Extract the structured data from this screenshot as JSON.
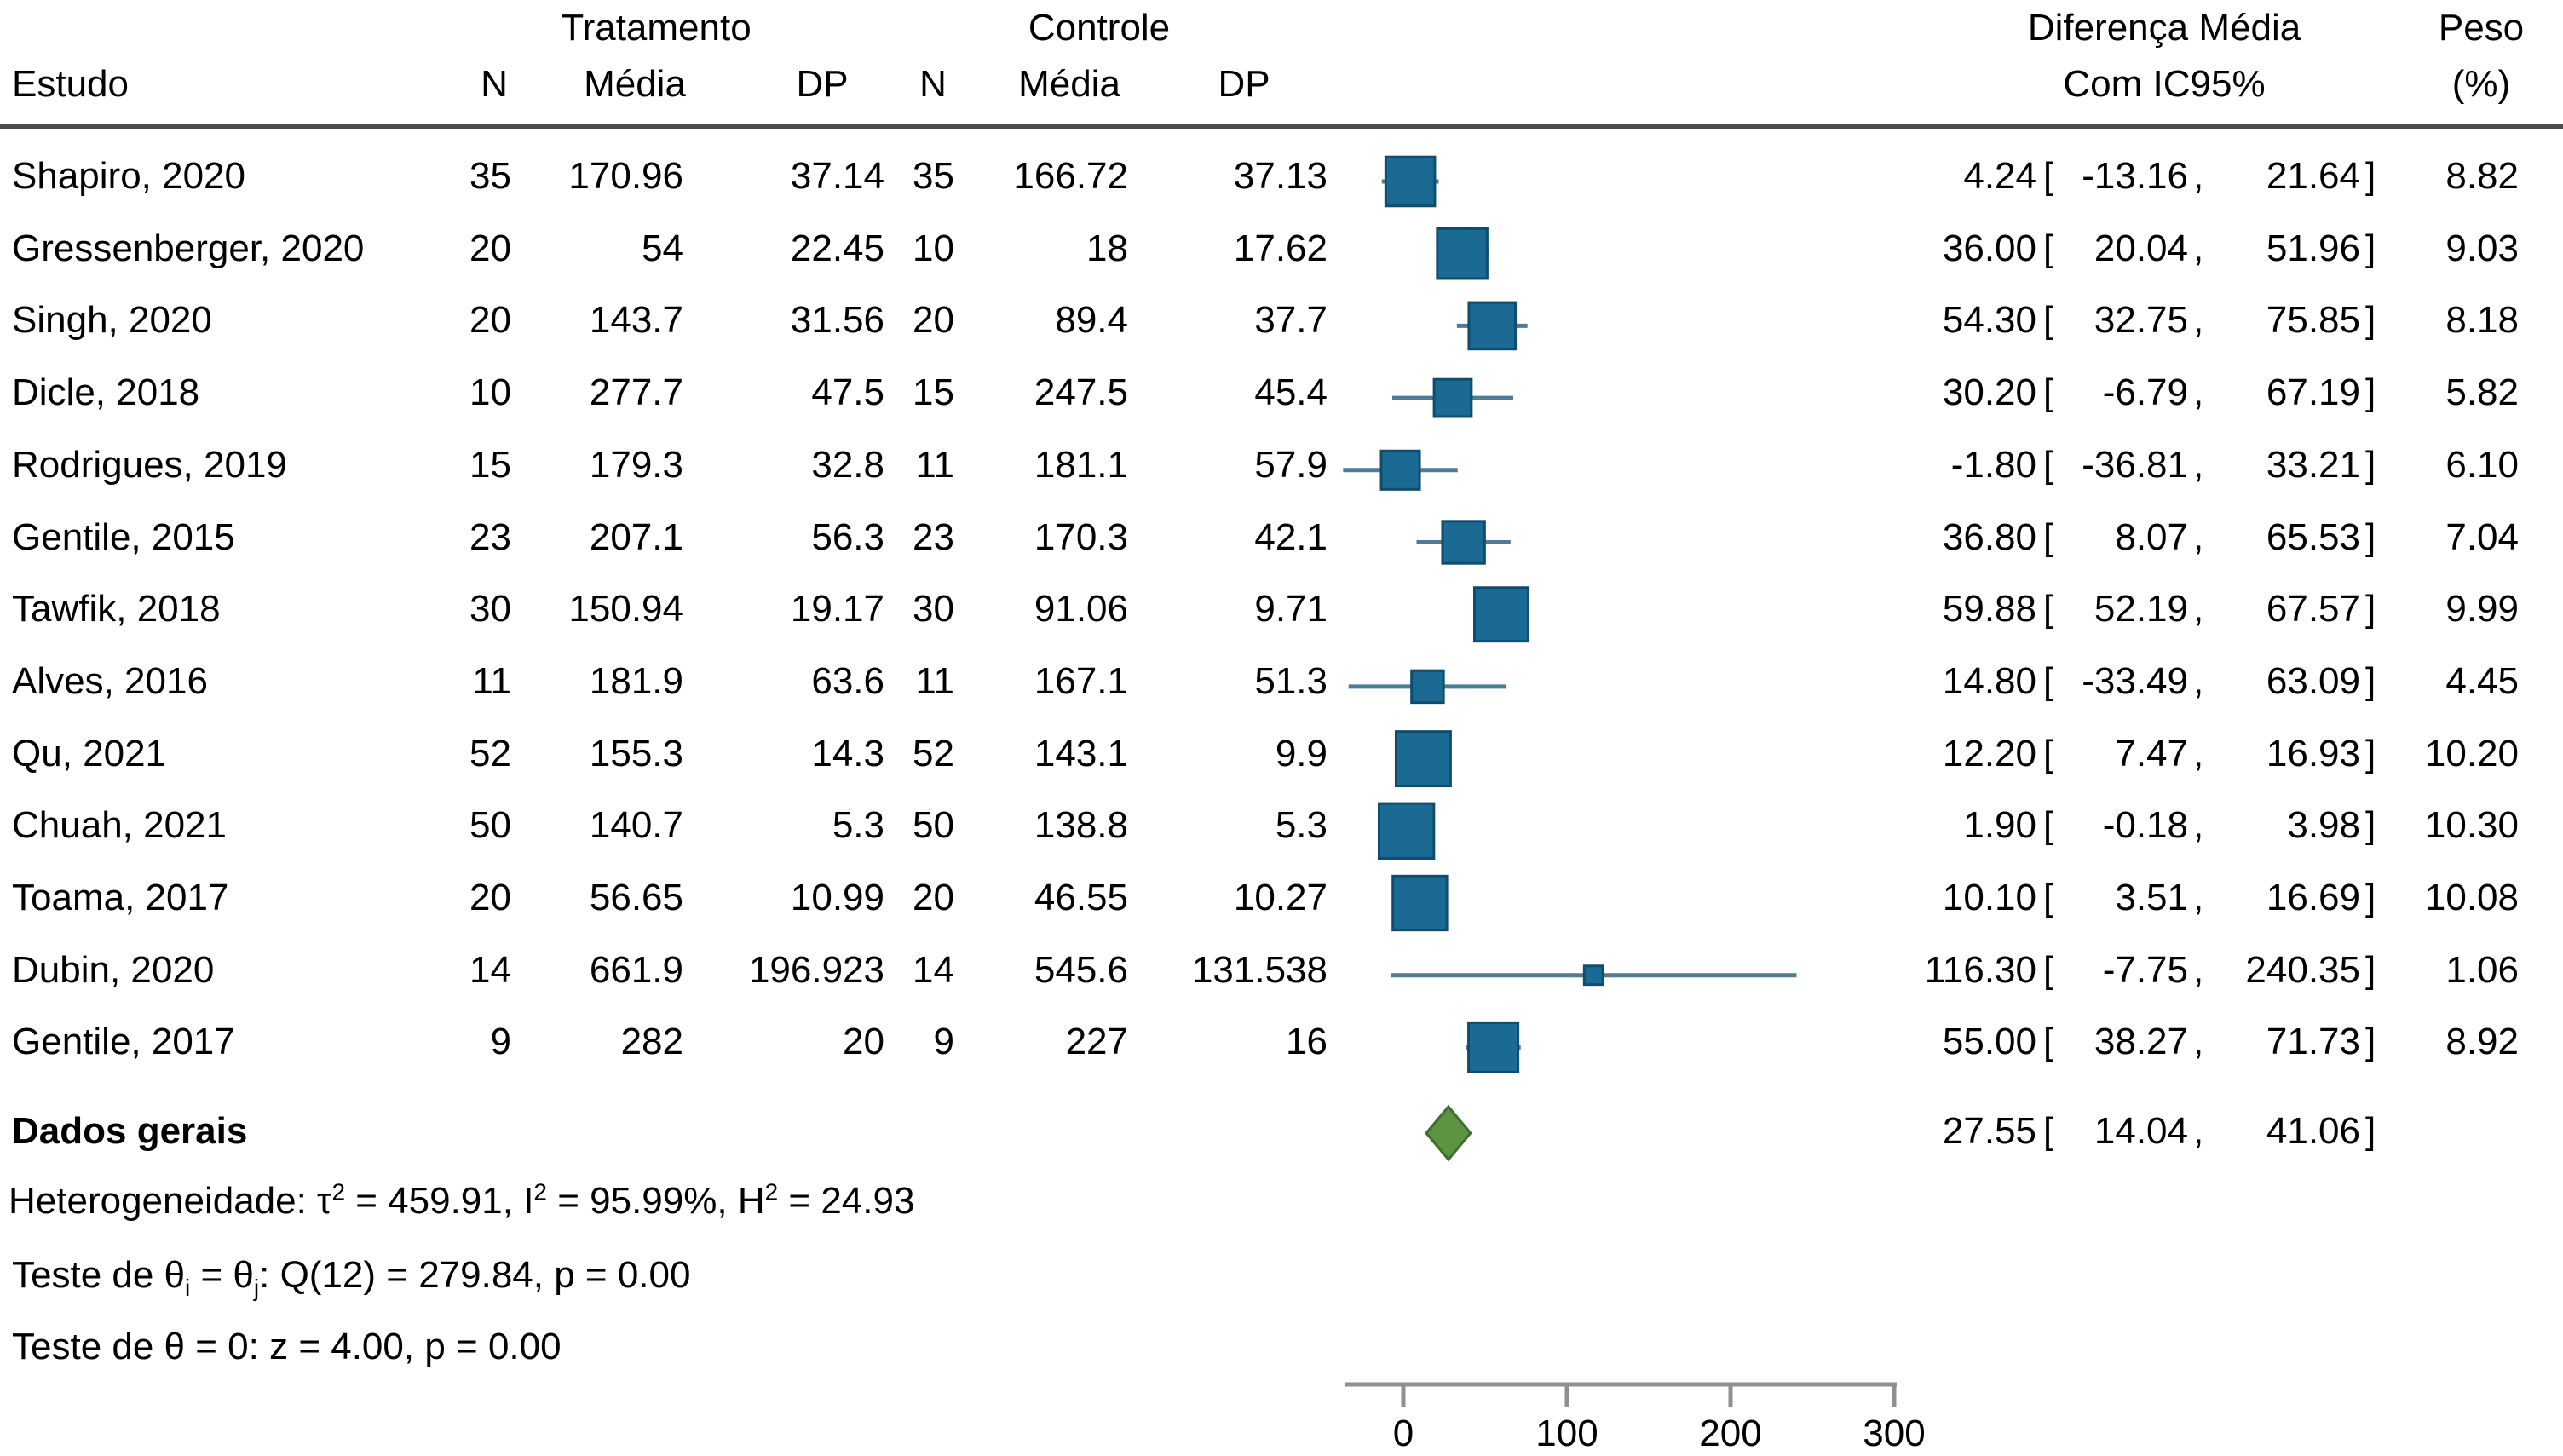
{
  "header": {
    "group_treatment": "Tratamento",
    "group_control": "Controle",
    "col_estudo": "Estudo",
    "col_n": "N",
    "col_media": "Média",
    "col_dp": "DP",
    "col_diff_line1": "Diferença Média",
    "col_diff_line2": "Com IC95%",
    "col_peso_line1": "Peso",
    "col_peso_line2": "(%)"
  },
  "chart_data": {
    "type": "forest",
    "effect_label": "Diferença Média Com IC95%",
    "x_ticks": [
      "0",
      "100",
      "200",
      "300"
    ],
    "x_tick_values": [
      0,
      100,
      200,
      300
    ],
    "axis_value_range": [
      -36,
      301
    ],
    "studies": [
      {
        "label": "Shapiro, 2020",
        "n1": "35",
        "mean1": "170.96",
        "sd1": "37.14",
        "n2": "35",
        "mean2": "166.72",
        "sd2": "37.13",
        "md": 4.24,
        "lcl": -13.16,
        "ucl": 21.64,
        "md_text": "4.24",
        "lcl_text": "-13.16",
        "ucl_text": "21.64",
        "weight": 8.82,
        "weight_text": "8.82"
      },
      {
        "label": "Gressenberger, 2020",
        "n1": "20",
        "mean1": "54",
        "sd1": "22.45",
        "n2": "10",
        "mean2": "18",
        "sd2": "17.62",
        "md": 36.0,
        "lcl": 20.04,
        "ucl": 51.96,
        "md_text": "36.00",
        "lcl_text": "20.04",
        "ucl_text": "51.96",
        "weight": 9.03,
        "weight_text": "9.03"
      },
      {
        "label": "Singh, 2020",
        "n1": "20",
        "mean1": "143.7",
        "sd1": "31.56",
        "n2": "20",
        "mean2": "89.4",
        "sd2": "37.7",
        "md": 54.3,
        "lcl": 32.75,
        "ucl": 75.85,
        "md_text": "54.30",
        "lcl_text": "32.75",
        "ucl_text": "75.85",
        "weight": 8.18,
        "weight_text": "8.18"
      },
      {
        "label": "Dicle, 2018",
        "n1": "10",
        "mean1": "277.7",
        "sd1": "47.5",
        "n2": "15",
        "mean2": "247.5",
        "sd2": "45.4",
        "md": 30.2,
        "lcl": -6.79,
        "ucl": 67.19,
        "md_text": "30.20",
        "lcl_text": "-6.79",
        "ucl_text": "67.19",
        "weight": 5.82,
        "weight_text": "5.82"
      },
      {
        "label": "Rodrigues, 2019",
        "n1": "15",
        "mean1": "179.3",
        "sd1": "32.8",
        "n2": "11",
        "mean2": "181.1",
        "sd2": "57.9",
        "md": -1.8,
        "lcl": -36.81,
        "ucl": 33.21,
        "md_text": "-1.80",
        "lcl_text": "-36.81",
        "ucl_text": "33.21",
        "weight": 6.1,
        "weight_text": "6.10"
      },
      {
        "label": "Gentile, 2015",
        "n1": "23",
        "mean1": "207.1",
        "sd1": "56.3",
        "n2": "23",
        "mean2": "170.3",
        "sd2": "42.1",
        "md": 36.8,
        "lcl": 8.07,
        "ucl": 65.53,
        "md_text": "36.80",
        "lcl_text": "8.07",
        "ucl_text": "65.53",
        "weight": 7.04,
        "weight_text": "7.04"
      },
      {
        "label": "Tawfik, 2018",
        "n1": "30",
        "mean1": "150.94",
        "sd1": "19.17",
        "n2": "30",
        "mean2": "91.06",
        "sd2": "9.71",
        "md": 59.88,
        "lcl": 52.19,
        "ucl": 67.57,
        "md_text": "59.88",
        "lcl_text": "52.19",
        "ucl_text": "67.57",
        "weight": 9.99,
        "weight_text": "9.99"
      },
      {
        "label": "Alves, 2016",
        "n1": "11",
        "mean1": "181.9",
        "sd1": "63.6",
        "n2": "11",
        "mean2": "167.1",
        "sd2": "51.3",
        "md": 14.8,
        "lcl": -33.49,
        "ucl": 63.09,
        "md_text": "14.80",
        "lcl_text": "-33.49",
        "ucl_text": "63.09",
        "weight": 4.45,
        "weight_text": "4.45"
      },
      {
        "label": "Qu, 2021",
        "n1": "52",
        "mean1": "155.3",
        "sd1": "14.3",
        "n2": "52",
        "mean2": "143.1",
        "sd2": "9.9",
        "md": 12.2,
        "lcl": 7.47,
        "ucl": 16.93,
        "md_text": "12.20",
        "lcl_text": "7.47",
        "ucl_text": "16.93",
        "weight": 10.2,
        "weight_text": "10.20"
      },
      {
        "label": "Chuah, 2021",
        "n1": "50",
        "mean1": "140.7",
        "sd1": "5.3",
        "n2": "50",
        "mean2": "138.8",
        "sd2": "5.3",
        "md": 1.9,
        "lcl": -0.18,
        "ucl": 3.98,
        "md_text": "1.90",
        "lcl_text": "-0.18",
        "ucl_text": "3.98",
        "weight": 10.3,
        "weight_text": "10.30"
      },
      {
        "label": "Toama, 2017",
        "n1": "20",
        "mean1": "56.65",
        "sd1": "10.99",
        "n2": "20",
        "mean2": "46.55",
        "sd2": "10.27",
        "md": 10.1,
        "lcl": 3.51,
        "ucl": 16.69,
        "md_text": "10.10",
        "lcl_text": "3.51",
        "ucl_text": "16.69",
        "weight": 10.08,
        "weight_text": "10.08"
      },
      {
        "label": "Dubin, 2020",
        "n1": "14",
        "mean1": "661.9",
        "sd1": "196.923",
        "n2": "14",
        "mean2": "545.6",
        "sd2": "131.538",
        "md": 116.3,
        "lcl": -7.75,
        "ucl": 240.35,
        "md_text": "116.30",
        "lcl_text": "-7.75",
        "ucl_text": "240.35",
        "weight": 1.06,
        "weight_text": "1.06"
      },
      {
        "label": "Gentile, 2017",
        "n1": "9",
        "mean1": "282",
        "sd1": "20",
        "n2": "9",
        "mean2": "227",
        "sd2": "16",
        "md": 55.0,
        "lcl": 38.27,
        "ucl": 71.73,
        "md_text": "55.00",
        "lcl_text": "38.27",
        "ucl_text": "71.73",
        "weight": 8.92,
        "weight_text": "8.92"
      }
    ],
    "overall": {
      "label": "Dados gerais",
      "md": 27.55,
      "lcl": 14.04,
      "ucl": 41.06,
      "md_text": "27.55",
      "lcl_text": "14.04",
      "ucl_text": "41.06"
    },
    "punct": {
      "open": "[",
      "comma": ",",
      "close": "]"
    },
    "colors": {
      "marker_fill": "#1b6a94",
      "marker_border": "#0f4d6e",
      "ci_line": "#4e7b97",
      "diamond_fill": "#5c9441",
      "diamond_border": "#3f6e2d",
      "axis": "#8f8f8f",
      "rule": "#4c4c4c",
      "text": "#000000"
    }
  },
  "footer": {
    "het": {
      "p1": "Heterogeneidade: τ",
      "s1": "2",
      "p2": " = 459.91, I",
      "s2": "2",
      "p3": " = 95.99%, H",
      "s3": "2",
      "p4": " = 24.93"
    },
    "test1": {
      "p1": "Teste de θ",
      "sub1": "i",
      "p2": " = θ",
      "sub2": "j",
      "p3": ": Q(12) = 279.84, p = 0.00"
    },
    "test2": {
      "p1": "Teste de θ = 0: z = 4.00, p = 0.00"
    }
  }
}
